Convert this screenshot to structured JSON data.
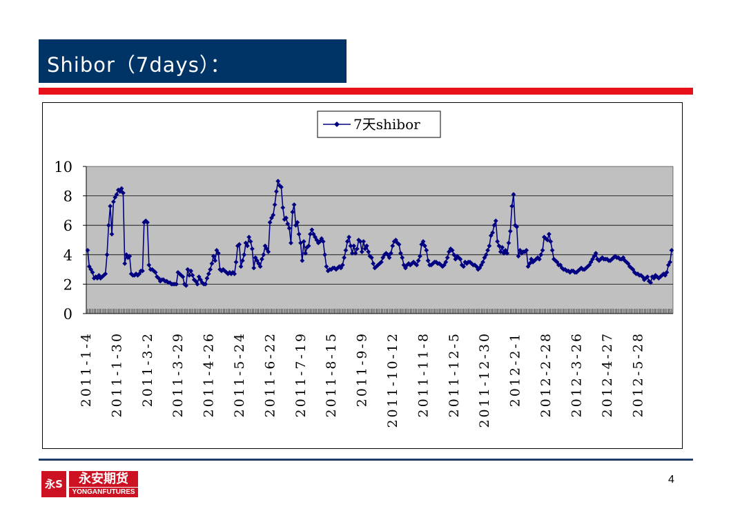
{
  "header": {
    "title": "Shibor（7days）："
  },
  "footer": {
    "logo_cn": "永安期货",
    "logo_en": "YONGANFUTURES",
    "logo_mark": "永S",
    "page_number": "4"
  },
  "colors": {
    "title_bg": "#003366",
    "accent_red": "#e8101a",
    "series": "#000080",
    "plot_bg": "#c0c0c0"
  },
  "chart_data": {
    "type": "line",
    "title": "",
    "legend": {
      "position": "top-center"
    },
    "ylim": [
      0,
      10
    ],
    "yticks": [
      "0",
      "2",
      "4",
      "6",
      "8",
      "10"
    ],
    "grid": true,
    "xtick_labels": [
      "2011-1-4",
      "2011-1-30",
      "2011-3-2",
      "2011-3-29",
      "2011-4-26",
      "2011-5-24",
      "2011-6-22",
      "2011-7-19",
      "2011-8-15",
      "2011-9-9",
      "2011-10-12",
      "2011-11-8",
      "2011-12-5",
      "2011-12-30",
      "2012-2-1",
      "2012-2-28",
      "2012-3-26",
      "2012-4-27",
      "2012-5-28"
    ],
    "series": [
      {
        "name": "7天shibor",
        "values": [
          4.3,
          3.2,
          3.0,
          2.8,
          2.4,
          2.5,
          2.4,
          2.6,
          2.4,
          2.5,
          2.6,
          2.7,
          4.0,
          6.0,
          7.3,
          5.4,
          7.6,
          7.9,
          8.1,
          8.4,
          8.3,
          8.5,
          8.2,
          3.4,
          4.0,
          3.8,
          3.9,
          2.7,
          2.6,
          2.6,
          2.7,
          2.6,
          2.7,
          2.9,
          2.9,
          6.2,
          6.3,
          6.2,
          3.3,
          3.0,
          3.0,
          2.9,
          2.8,
          2.5,
          2.4,
          2.2,
          2.3,
          2.3,
          2.2,
          2.2,
          2.1,
          2.1,
          2.0,
          2.0,
          2.0,
          2.0,
          2.8,
          2.7,
          2.6,
          2.5,
          2.0,
          1.9,
          3.0,
          2.6,
          2.9,
          2.6,
          2.3,
          2.2,
          2.0,
          2.5,
          2.3,
          2.1,
          2.0,
          2.0,
          2.4,
          2.7,
          3.0,
          3.4,
          3.9,
          3.6,
          4.3,
          4.1,
          3.0,
          2.9,
          3.0,
          2.9,
          2.8,
          2.7,
          2.8,
          2.7,
          2.8,
          2.7,
          3.5,
          4.6,
          4.7,
          3.2,
          3.6,
          4.0,
          4.8,
          4.6,
          5.2,
          4.9,
          4.4,
          3.1,
          3.8,
          3.6,
          3.4,
          3.2,
          3.7,
          4.0,
          4.6,
          4.4,
          4.2,
          6.2,
          6.5,
          6.7,
          7.4,
          8.3,
          9.0,
          8.7,
          8.6,
          7.2,
          6.4,
          6.5,
          6.1,
          5.8,
          4.8,
          6.9,
          7.4,
          6.0,
          6.2,
          5.4,
          4.8,
          3.6,
          4.9,
          4.1,
          4.5,
          4.6,
          5.4,
          5.7,
          5.4,
          5.2,
          5.0,
          4.8,
          4.9,
          5.1,
          4.9,
          4.0,
          3.2,
          2.9,
          3.0,
          3.0,
          3.1,
          3.1,
          3.0,
          3.1,
          3.2,
          3.1,
          3.3,
          3.8,
          4.3,
          4.9,
          5.2,
          4.6,
          4.1,
          4.6,
          4.1,
          4.4,
          5.0,
          4.9,
          4.2,
          4.9,
          4.4,
          4.6,
          4.2,
          3.9,
          3.8,
          3.4,
          3.1,
          3.2,
          3.3,
          3.4,
          3.5,
          3.8,
          4.0,
          4.1,
          4.0,
          3.8,
          4.1,
          4.6,
          4.9,
          5.0,
          4.8,
          4.7,
          4.1,
          3.8,
          3.3,
          3.1,
          3.3,
          3.4,
          3.3,
          3.4,
          3.5,
          3.4,
          3.3,
          3.6,
          3.9,
          4.7,
          4.9,
          4.6,
          4.3,
          3.6,
          3.3,
          3.3,
          3.4,
          3.5,
          3.5,
          3.4,
          3.4,
          3.3,
          3.2,
          3.3,
          3.5,
          3.8,
          4.2,
          4.4,
          4.3,
          4.0,
          3.7,
          3.9,
          3.8,
          3.7,
          3.3,
          3.2,
          3.5,
          3.4,
          3.5,
          3.5,
          3.4,
          3.3,
          3.3,
          3.2,
          3.0,
          3.1,
          3.3,
          3.5,
          3.8,
          4.0,
          4.3,
          4.6,
          5.3,
          5.5,
          6.0,
          6.3,
          4.9,
          4.6,
          4.2,
          4.5,
          4.1,
          4.3,
          4.1,
          4.8,
          5.6,
          7.3,
          8.1,
          6.0,
          5.9,
          3.9,
          4.3,
          4.1,
          4.2,
          4.2,
          4.3,
          3.2,
          3.4,
          3.7,
          3.5,
          3.6,
          3.7,
          3.8,
          3.7,
          4.0,
          4.3,
          5.2,
          5.1,
          5.0,
          5.4,
          4.9,
          4.3,
          3.7,
          3.6,
          3.5,
          3.3,
          3.3,
          3.1,
          3.0,
          3.0,
          2.9,
          2.9,
          2.8,
          2.9,
          2.9,
          2.8,
          2.8,
          2.9,
          3.0,
          3.1,
          3.0,
          3.0,
          3.1,
          3.2,
          3.3,
          3.5,
          3.7,
          3.9,
          4.1,
          3.7,
          3.6,
          3.7,
          3.8,
          3.7,
          3.7,
          3.7,
          3.6,
          3.6,
          3.7,
          3.8,
          3.9,
          3.8,
          3.8,
          3.7,
          3.7,
          3.8,
          3.6,
          3.5,
          3.4,
          3.2,
          3.1,
          3.0,
          2.8,
          2.7,
          2.7,
          2.6,
          2.6,
          2.5,
          2.3,
          2.4,
          2.5,
          2.2,
          2.1,
          2.5,
          2.4,
          2.6,
          2.5,
          2.4,
          2.5,
          2.6,
          2.7,
          2.6,
          2.8,
          3.3,
          3.5,
          4.3
        ]
      }
    ]
  }
}
